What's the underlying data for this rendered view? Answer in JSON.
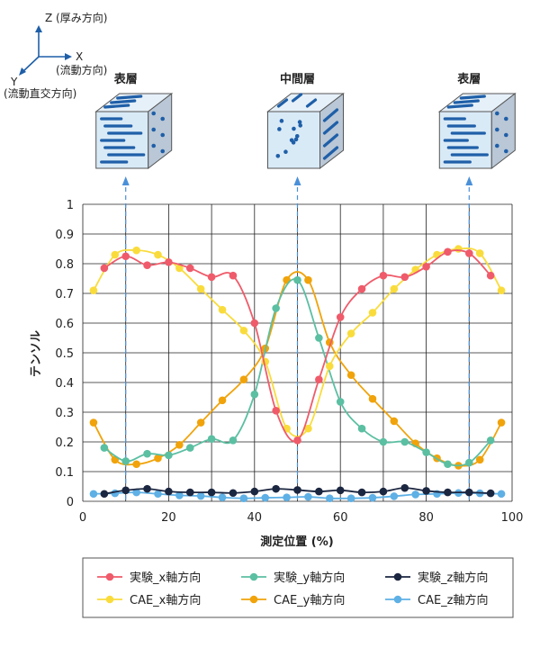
{
  "axes_indicator": {
    "z_label": "Z (厚み方向)",
    "x_label": "X",
    "x_sub": "(流動方向)",
    "y_label": "Y",
    "y_sub": "(流動直交方向)"
  },
  "cubes": [
    {
      "title": "表層",
      "x": 10
    },
    {
      "title": "中間層",
      "x": 50
    },
    {
      "title": "表層",
      "x": 90
    }
  ],
  "colors": {
    "exp_x": "#ef5b6a",
    "exp_y": "#5bbfa2",
    "exp_z": "#1b2640",
    "cae_x": "#f9dc3c",
    "cae_y": "#f0a30a",
    "cae_z": "#5eb0e5",
    "cube_face": "#d9eaf7",
    "fiber": "#1f5fa8"
  },
  "chart_data": {
    "type": "line",
    "title": "",
    "xlabel": "測定位置 (%)",
    "ylabel": "テンソル",
    "xlim": [
      0,
      100
    ],
    "ylim": [
      0,
      1
    ],
    "xticks": [
      "0",
      "20",
      "40",
      "60",
      "80",
      "100"
    ],
    "yticks": [
      "0",
      "0.1",
      "0.2",
      "0.3",
      "0.4",
      "0.5",
      "0.6",
      "0.7",
      "0.8",
      "0.9",
      "1"
    ],
    "grid": true,
    "legend_position": "bottom",
    "series": [
      {
        "name": "実験_x軸方向",
        "key": "exp_x",
        "x": [
          5,
          10,
          15,
          20,
          25,
          30,
          35,
          40,
          45,
          50,
          55,
          60,
          65,
          70,
          75,
          80,
          85,
          90,
          95
        ],
        "y": [
          0.785,
          0.825,
          0.795,
          0.805,
          0.785,
          0.755,
          0.76,
          0.6,
          0.305,
          0.205,
          0.41,
          0.62,
          0.715,
          0.76,
          0.755,
          0.79,
          0.84,
          0.835,
          0.76
        ]
      },
      {
        "name": "実験_y軸方向",
        "key": "exp_y",
        "x": [
          5,
          10,
          15,
          20,
          25,
          30,
          35,
          40,
          45,
          50,
          55,
          60,
          65,
          70,
          75,
          80,
          85,
          90,
          95
        ],
        "y": [
          0.18,
          0.135,
          0.16,
          0.155,
          0.18,
          0.21,
          0.205,
          0.36,
          0.65,
          0.745,
          0.55,
          0.335,
          0.245,
          0.2,
          0.2,
          0.165,
          0.125,
          0.13,
          0.205
        ]
      },
      {
        "name": "実験_z軸方向",
        "key": "exp_z",
        "x": [
          5,
          10,
          15,
          20,
          25,
          30,
          35,
          40,
          45,
          50,
          55,
          60,
          65,
          70,
          75,
          80,
          85,
          90,
          95
        ],
        "y": [
          0.025,
          0.037,
          0.042,
          0.033,
          0.03,
          0.03,
          0.028,
          0.033,
          0.042,
          0.038,
          0.033,
          0.037,
          0.03,
          0.033,
          0.045,
          0.035,
          0.03,
          0.03,
          0.027
        ]
      },
      {
        "name": "CAE_x軸方向",
        "key": "cae_x",
        "x": [
          2.5,
          7.5,
          12.5,
          17.5,
          22.5,
          27.5,
          32.5,
          37.5,
          42.5,
          47.5,
          52.5,
          57.5,
          62.5,
          67.5,
          72.5,
          77.5,
          82.5,
          87.5,
          92.5,
          97.5
        ],
        "y": [
          0.71,
          0.83,
          0.845,
          0.83,
          0.785,
          0.715,
          0.645,
          0.575,
          0.47,
          0.245,
          0.245,
          0.455,
          0.565,
          0.635,
          0.715,
          0.78,
          0.83,
          0.85,
          0.835,
          0.71
        ]
      },
      {
        "name": "CAE_y軸方向",
        "key": "cae_y",
        "x": [
          2.5,
          7.5,
          12.5,
          17.5,
          22.5,
          27.5,
          32.5,
          37.5,
          42.5,
          47.5,
          52.5,
          57.5,
          62.5,
          67.5,
          72.5,
          77.5,
          82.5,
          87.5,
          92.5,
          97.5
        ],
        "y": [
          0.265,
          0.14,
          0.125,
          0.145,
          0.19,
          0.265,
          0.34,
          0.41,
          0.515,
          0.745,
          0.745,
          0.535,
          0.425,
          0.345,
          0.27,
          0.195,
          0.145,
          0.12,
          0.14,
          0.265
        ]
      },
      {
        "name": "CAE_z軸方向",
        "key": "cae_z",
        "x": [
          2.5,
          7.5,
          12.5,
          17.5,
          22.5,
          27.5,
          32.5,
          37.5,
          42.5,
          47.5,
          52.5,
          57.5,
          62.5,
          67.5,
          72.5,
          77.5,
          82.5,
          87.5,
          92.5,
          97.5
        ],
        "y": [
          0.025,
          0.027,
          0.03,
          0.025,
          0.02,
          0.018,
          0.013,
          0.01,
          0.012,
          0.013,
          0.015,
          0.01,
          0.01,
          0.012,
          0.017,
          0.023,
          0.025,
          0.028,
          0.027,
          0.025
        ]
      }
    ]
  }
}
